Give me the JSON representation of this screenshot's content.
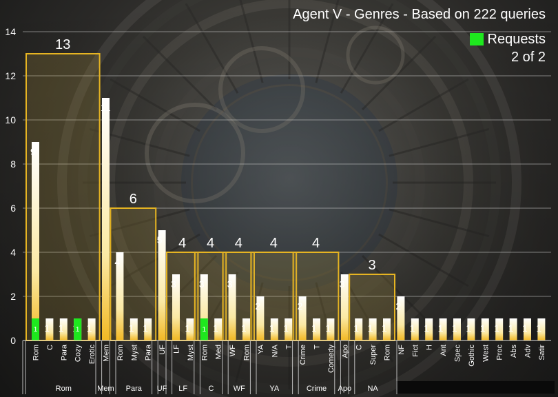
{
  "chart_data": {
    "type": "bar",
    "title": "Agent V - Genres - Based on 222 queries",
    "legend": [
      "Requests"
    ],
    "page_label": "2 of 2",
    "ylim": [
      0,
      14
    ],
    "y_ticks": [
      0,
      2,
      4,
      6,
      8,
      10,
      12,
      14
    ],
    "grid": true,
    "colors": {
      "bar": "#f2b823",
      "requests": "#1ee81e",
      "group_box": "#e6b422",
      "axis_text": "#ffffff"
    },
    "categories": [
      "Rom",
      "C",
      "Para",
      "Cozy",
      "Erotic",
      "Mem",
      "Rom",
      "Myst",
      "Para",
      "UF",
      "LF",
      "Myst",
      "Rom",
      "Med",
      "WF",
      "Rom",
      "YA",
      "N/A",
      "T",
      "Crime",
      "T",
      "Comedy",
      "Apo",
      "C",
      "Super",
      "Rom",
      "NF",
      "Fict",
      "H",
      "Ant",
      "Spec",
      "Gothic",
      "West",
      "Proc",
      "Abs",
      "Adv",
      "Satir"
    ],
    "series": [
      {
        "name": "",
        "values": [
          9,
          1,
          1,
          1,
          1,
          11,
          4,
          1,
          1,
          5,
          3,
          1,
          3,
          1,
          3,
          1,
          2,
          1,
          1,
          2,
          1,
          1,
          3,
          1,
          1,
          1,
          2,
          1,
          1,
          1,
          1,
          1,
          1,
          1,
          1,
          1,
          1
        ]
      },
      {
        "name": "Requests",
        "values": [
          1,
          0,
          0,
          1,
          0,
          0,
          0,
          0,
          0,
          0,
          0,
          0,
          1,
          0,
          0,
          0,
          0,
          0,
          0,
          0,
          0,
          0,
          0,
          0,
          0,
          0,
          0,
          0,
          0,
          0,
          0,
          0,
          0,
          0,
          0,
          0,
          0
        ]
      }
    ],
    "groups": [
      {
        "label": "Rom",
        "total": 13,
        "start": 0,
        "end": 4
      },
      {
        "label": "Mem",
        "start": 5,
        "end": 5
      },
      {
        "label": "Para",
        "total": 6,
        "start": 6,
        "end": 8
      },
      {
        "label": "UF",
        "start": 9,
        "end": 9
      },
      {
        "label": "LF",
        "total": 4,
        "start": 10,
        "end": 11
      },
      {
        "label": "C",
        "total": 4,
        "start": 12,
        "end": 13
      },
      {
        "label": "WF",
        "total": 4,
        "start": 14,
        "end": 15
      },
      {
        "label": "YA",
        "total": 4,
        "start": 16,
        "end": 18
      },
      {
        "label": "Crime",
        "total": 4,
        "start": 19,
        "end": 21
      },
      {
        "label": "Apo",
        "start": 22,
        "end": 22
      },
      {
        "label": "NA",
        "total": 3,
        "start": 23,
        "end": 25
      }
    ]
  }
}
